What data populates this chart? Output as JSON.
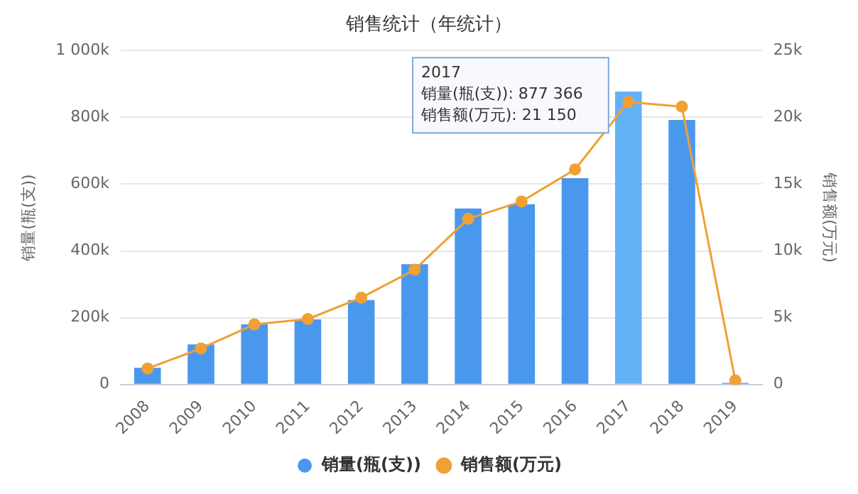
{
  "chart_data": {
    "type": "bar",
    "title": "销售统计（年统计）",
    "ylabel": "销量(瓶(支))",
    "y2label": "销售额(万元)",
    "categories": [
      "2008",
      "2009",
      "2010",
      "2011",
      "2012",
      "2013",
      "2014",
      "2015",
      "2016",
      "2017",
      "2018",
      "2019"
    ],
    "series": [
      {
        "name": "销量(瓶(支))",
        "color": "#4a98ee",
        "colors": [
          "#4a98ee",
          "#4a98ee",
          "#4a98ee",
          "#4a98ee",
          "#4a98ee",
          "#4a98ee",
          "#4a98ee",
          "#4a98ee",
          "#4a98ee",
          "#63b2f7",
          "#4a98ee",
          "#4a98ee"
        ],
        "values": [
          50000,
          120000,
          180000,
          195000,
          253000,
          360000,
          527000,
          540000,
          618000,
          877366,
          792000,
          5000
        ]
      },
      {
        "name": "销售额(万元)",
        "type": "line",
        "axis": "y2",
        "color": "#f0a035",
        "marker": "circle",
        "values": [
          1200,
          2700,
          4500,
          4900,
          6500,
          8600,
          12400,
          13700,
          16100,
          21150,
          20800,
          300
        ]
      }
    ],
    "ylim": [
      0,
      1000000
    ],
    "yticks": [
      {
        "value": 0,
        "label": "0"
      },
      {
        "value": 200000,
        "label": "200k"
      },
      {
        "value": 400000,
        "label": "400k"
      },
      {
        "value": 600000,
        "label": "600k"
      },
      {
        "value": 800000,
        "label": "800k"
      },
      {
        "value": 1000000,
        "label": "1 000k"
      }
    ],
    "y2lim": [
      0,
      25000
    ],
    "y2ticks": [
      {
        "value": 0,
        "label": "0"
      },
      {
        "value": 5000,
        "label": "5k"
      },
      {
        "value": 10000,
        "label": "10k"
      },
      {
        "value": 15000,
        "label": "15k"
      },
      {
        "value": 20000,
        "label": "20k"
      },
      {
        "value": 25000,
        "label": "25k"
      }
    ],
    "grid": "y",
    "legend": "bottom",
    "annotations": [
      {
        "text": "2017\n销量(瓶(支)): 877 366\n销售额(万元): 21 150",
        "x": "2017"
      }
    ]
  }
}
